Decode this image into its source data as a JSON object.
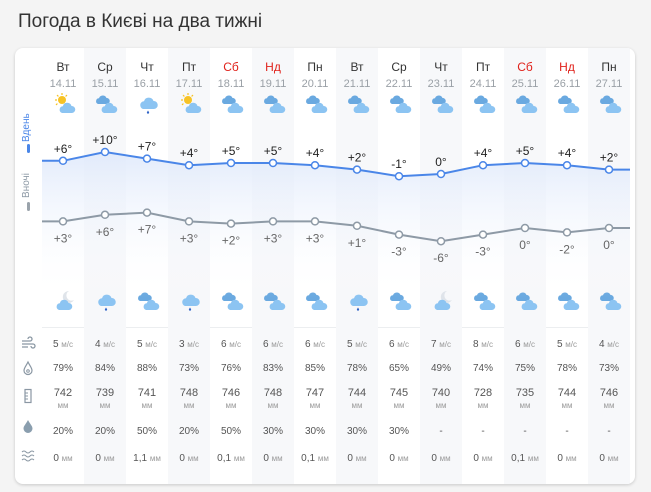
{
  "title": "Погода в Києві на два тижні",
  "legend": {
    "day": "Вдень",
    "night": "Вночі",
    "day_color": "#4a86e8",
    "night_color": "#8e9aa6"
  },
  "days": [
    {
      "name": "Вт",
      "date": "14.11",
      "weekend": false,
      "day_icon": "sun-cloud",
      "night_icon": "moon-cloud",
      "day_t": "+6°",
      "night_t": "+3°",
      "wind": "5",
      "hum": "79%",
      "press": "742",
      "prob": "20%",
      "precip": "0"
    },
    {
      "name": "Ср",
      "date": "15.11",
      "weekend": false,
      "day_icon": "cloudy",
      "night_icon": "rain",
      "day_t": "+10°",
      "night_t": "+6°",
      "wind": "4",
      "hum": "84%",
      "press": "739",
      "prob": "20%",
      "precip": "0"
    },
    {
      "name": "Чт",
      "date": "16.11",
      "weekend": false,
      "day_icon": "rain",
      "night_icon": "cloudy",
      "day_t": "+7°",
      "night_t": "+7°",
      "wind": "5",
      "hum": "88%",
      "press": "741",
      "prob": "50%",
      "precip": "1,1"
    },
    {
      "name": "Пт",
      "date": "17.11",
      "weekend": false,
      "day_icon": "sun-cloud",
      "night_icon": "rain",
      "day_t": "+4°",
      "night_t": "+3°",
      "wind": "3",
      "hum": "73%",
      "press": "748",
      "prob": "20%",
      "precip": "0"
    },
    {
      "name": "Сб",
      "date": "18.11",
      "weekend": true,
      "day_icon": "cloudy",
      "night_icon": "cloudy",
      "day_t": "+5°",
      "night_t": "+2°",
      "wind": "6",
      "hum": "76%",
      "press": "746",
      "prob": "50%",
      "precip": "0,1"
    },
    {
      "name": "Нд",
      "date": "19.11",
      "weekend": true,
      "day_icon": "cloudy",
      "night_icon": "cloudy",
      "day_t": "+5°",
      "night_t": "+3°",
      "wind": "6",
      "hum": "83%",
      "press": "748",
      "prob": "30%",
      "precip": "0"
    },
    {
      "name": "Пн",
      "date": "20.11",
      "weekend": false,
      "day_icon": "cloudy",
      "night_icon": "cloudy",
      "day_t": "+4°",
      "night_t": "+3°",
      "wind": "6",
      "hum": "85%",
      "press": "747",
      "prob": "30%",
      "precip": "0,1"
    },
    {
      "name": "Вт",
      "date": "21.11",
      "weekend": false,
      "day_icon": "cloudy",
      "night_icon": "rain",
      "day_t": "+2°",
      "night_t": "+1°",
      "wind": "5",
      "hum": "78%",
      "press": "744",
      "prob": "30%",
      "precip": "0"
    },
    {
      "name": "Ср",
      "date": "22.11",
      "weekend": false,
      "day_icon": "cloudy",
      "night_icon": "cloudy",
      "day_t": "-1°",
      "night_t": "-3°",
      "wind": "6",
      "hum": "65%",
      "press": "745",
      "prob": "30%",
      "precip": "0"
    },
    {
      "name": "Чт",
      "date": "23.11",
      "weekend": false,
      "day_icon": "cloudy",
      "night_icon": "moon-cloud",
      "day_t": "0°",
      "night_t": "-6°",
      "wind": "7",
      "hum": "49%",
      "press": "740",
      "prob": "-",
      "precip": "0"
    },
    {
      "name": "Пт",
      "date": "24.11",
      "weekend": false,
      "day_icon": "cloudy",
      "night_icon": "cloudy",
      "day_t": "+4°",
      "night_t": "-3°",
      "wind": "8",
      "hum": "74%",
      "press": "728",
      "prob": "-",
      "precip": "0"
    },
    {
      "name": "Сб",
      "date": "25.11",
      "weekend": true,
      "day_icon": "cloudy",
      "night_icon": "cloudy",
      "day_t": "+5°",
      "night_t": "0°",
      "wind": "6",
      "hum": "75%",
      "press": "735",
      "prob": "-",
      "precip": "0,1"
    },
    {
      "name": "Нд",
      "date": "26.11",
      "weekend": true,
      "day_icon": "cloudy",
      "night_icon": "cloudy",
      "day_t": "+4°",
      "night_t": "-2°",
      "wind": "5",
      "hum": "78%",
      "press": "744",
      "prob": "-",
      "precip": "0"
    },
    {
      "name": "Пн",
      "date": "27.11",
      "weekend": false,
      "day_icon": "cloudy",
      "night_icon": "cloudy",
      "day_t": "+2°",
      "night_t": "0°",
      "wind": "4",
      "hum": "73%",
      "press": "746",
      "prob": "-",
      "precip": "0"
    }
  ],
  "units": {
    "wind": "м/с",
    "press": "мм",
    "precip": "мм"
  },
  "row_icons": [
    "wind-icon",
    "humidity-icon",
    "pressure-icon",
    "precip-probability-icon",
    "precipitation-icon"
  ]
}
